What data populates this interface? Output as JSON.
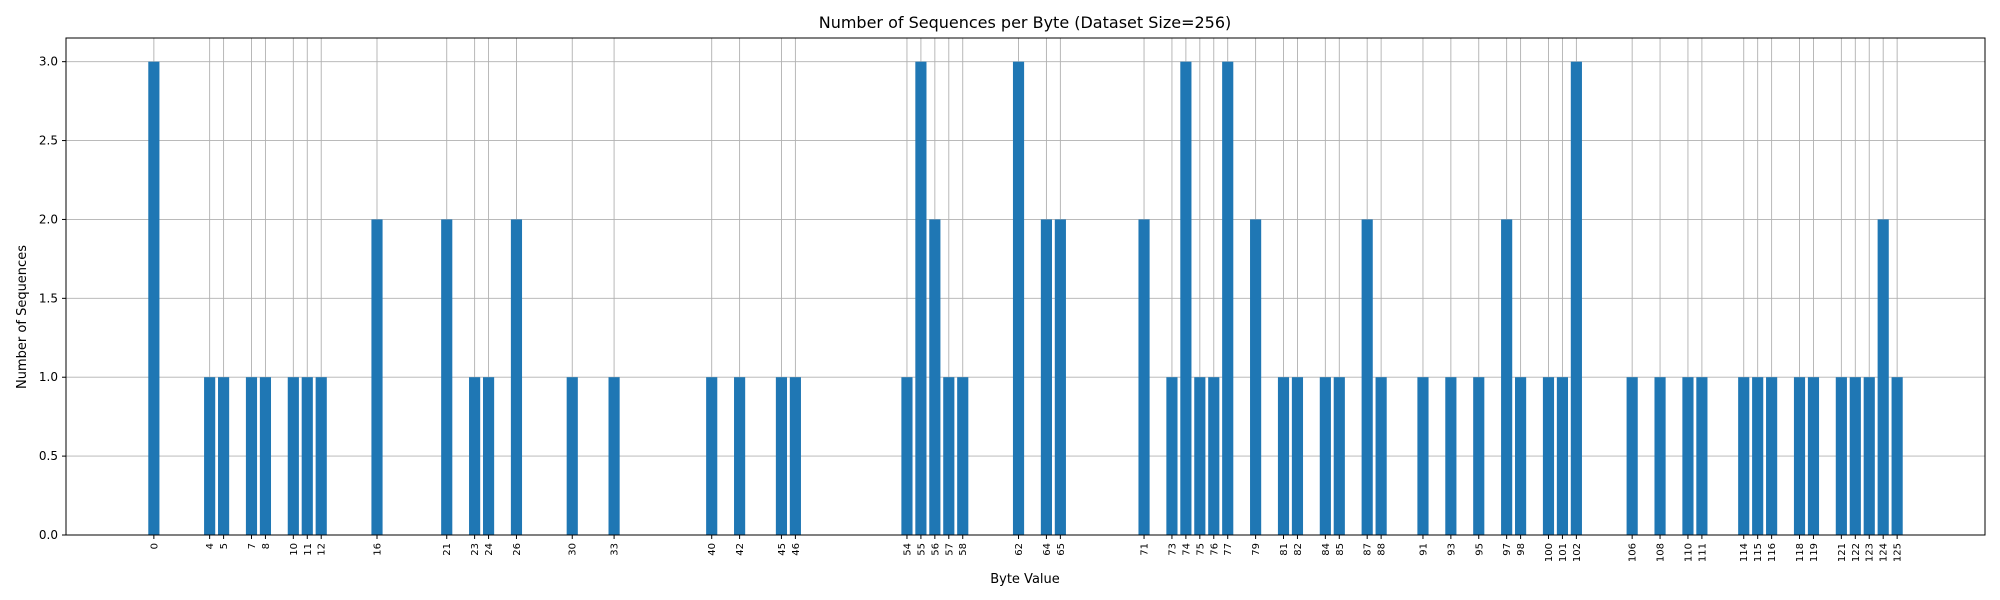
{
  "chart_data": {
    "type": "bar",
    "title": "Number of Sequences per Byte (Dataset Size=256)",
    "xlabel": "Byte Value",
    "ylabel": "Number of Sequences",
    "categories": [
      0,
      4,
      5,
      7,
      8,
      10,
      11,
      12,
      16,
      21,
      23,
      24,
      26,
      30,
      33,
      40,
      42,
      45,
      46,
      54,
      55,
      56,
      57,
      58,
      62,
      64,
      65,
      71,
      73,
      74,
      75,
      76,
      77,
      79,
      81,
      82,
      84,
      85,
      87,
      88,
      91,
      93,
      95,
      97,
      98,
      100,
      101,
      102,
      106,
      108,
      110,
      111,
      114,
      115,
      116,
      118,
      119,
      121,
      122,
      123,
      124,
      125
    ],
    "values": [
      3,
      1,
      1,
      1,
      1,
      1,
      1,
      1,
      2,
      2,
      1,
      1,
      2,
      1,
      1,
      1,
      1,
      1,
      1,
      1,
      3,
      2,
      1,
      1,
      3,
      2,
      2,
      2,
      1,
      3,
      1,
      1,
      3,
      2,
      1,
      1,
      1,
      1,
      2,
      1,
      1,
      1,
      1,
      2,
      1,
      1,
      1,
      3,
      1,
      1,
      1,
      1,
      1,
      1,
      1,
      1,
      1,
      1,
      1,
      1,
      2,
      1
    ],
    "xlim": [
      -6.3,
      131.3
    ],
    "ylim": [
      0,
      3.15
    ],
    "yticks": [
      "0.0",
      "0.5",
      "1.0",
      "1.5",
      "2.0",
      "2.5",
      "3.0"
    ],
    "ytick_values": [
      0,
      0.5,
      1,
      1.5,
      2,
      2.5,
      3
    ],
    "grid": true,
    "bar_color": "#1f77b4",
    "grid_color": "#b0b0b0"
  }
}
